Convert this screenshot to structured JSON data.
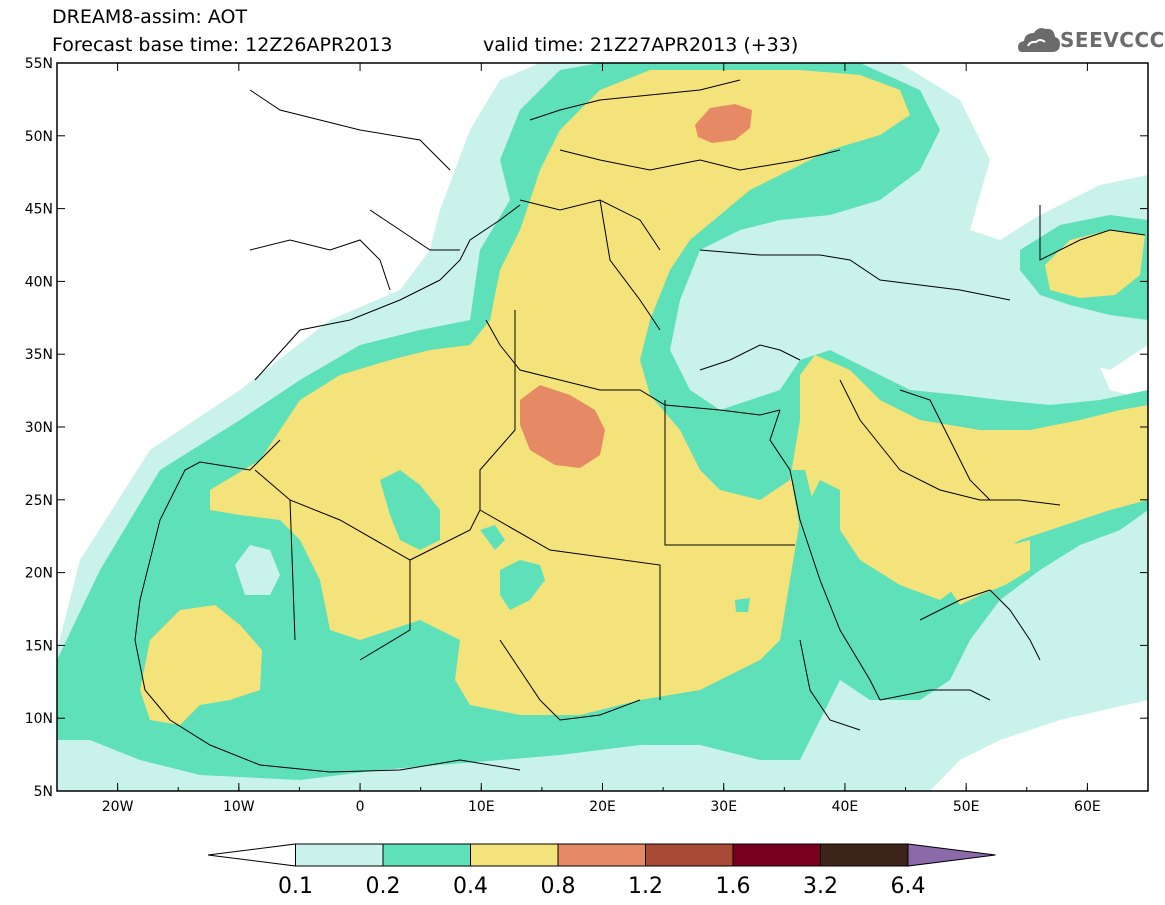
{
  "header": {
    "title_line1": "DREAM8-assim: AOT",
    "title_line2": "Forecast base time: 12Z26APR2013",
    "valid_time": "valid time: 21Z27APR2013 (+33)",
    "logo_text": "SEEVCCC"
  },
  "axes": {
    "lat_labels": [
      "55N",
      "50N",
      "45N",
      "40N",
      "35N",
      "30N",
      "25N",
      "20N",
      "15N",
      "10N",
      "5N"
    ],
    "lon_labels": [
      "20W",
      "10W",
      "0",
      "10E",
      "20E",
      "30E",
      "40E",
      "50E",
      "60E"
    ],
    "lon_range": [
      -25,
      65
    ],
    "lat_range": [
      5,
      55
    ]
  },
  "colorbar": {
    "levels": [
      "0.1",
      "0.2",
      "0.4",
      "0.8",
      "1.2",
      "1.6",
      "3.2",
      "6.4"
    ],
    "colors": [
      "#ffffff",
      "#c8f2ea",
      "#5ee0b8",
      "#f4e27a",
      "#e58a64",
      "#a84a36",
      "#7a0020",
      "#3c2418",
      "#8c6aaa"
    ]
  },
  "colors": {
    "c01": "#c8f2ea",
    "c02": "#5ee0b8",
    "c04": "#f4e27a",
    "c08": "#e58a64",
    "border": "#000000"
  }
}
